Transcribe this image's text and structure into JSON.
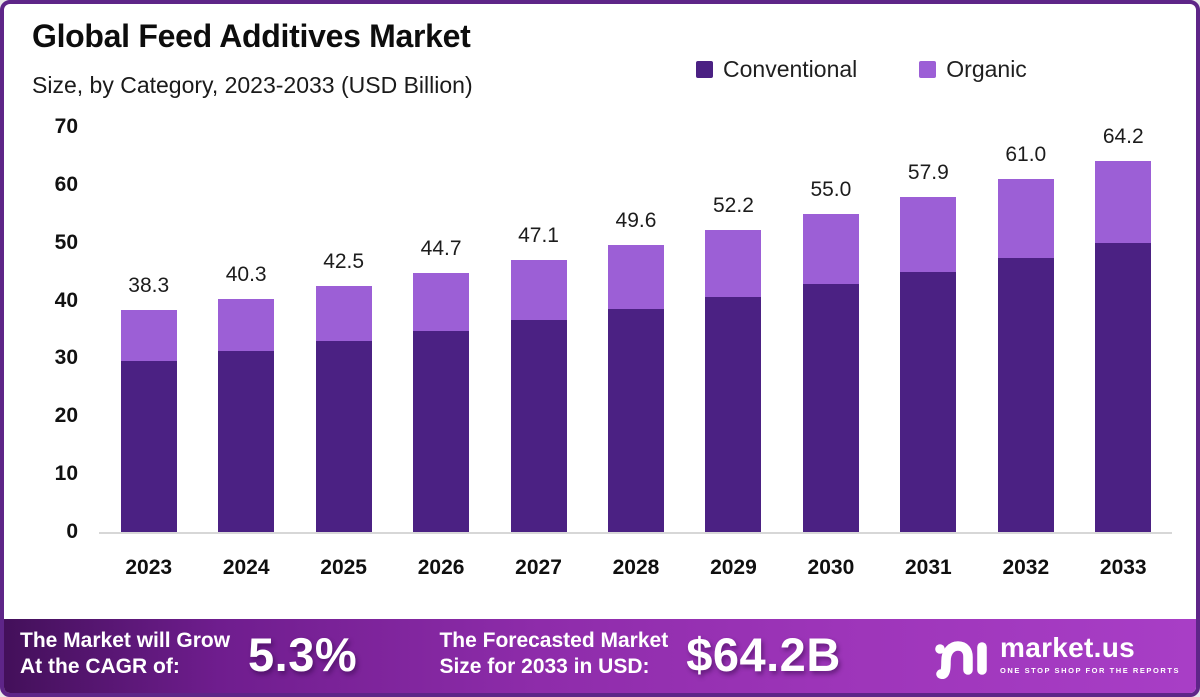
{
  "title": "Global Feed Additives Market",
  "subtitle": "Size, by Category, 2023-2033 (USD Billion)",
  "legend": [
    {
      "label": "Conventional",
      "color": "#4b2183"
    },
    {
      "label": "Organic",
      "color": "#9c5fd6"
    }
  ],
  "chart_data": {
    "type": "bar",
    "stacked": true,
    "title": "Global Feed Additives Market Size, by Category, 2023-2033 (USD Billion)",
    "categories": [
      "2023",
      "2024",
      "2025",
      "2026",
      "2027",
      "2028",
      "2029",
      "2030",
      "2031",
      "2032",
      "2033"
    ],
    "series": [
      {
        "name": "Conventional",
        "color": "#4b2183",
        "values": [
          29.6,
          31.3,
          33.0,
          34.7,
          36.6,
          38.5,
          40.6,
          42.8,
          45.0,
          47.3,
          49.9
        ]
      },
      {
        "name": "Organic",
        "color": "#9c5fd6",
        "values": [
          8.7,
          9.0,
          9.5,
          10.0,
          10.5,
          11.1,
          11.6,
          12.2,
          12.9,
          13.7,
          14.3
        ]
      }
    ],
    "totals": [
      38.3,
      40.3,
      42.5,
      44.7,
      47.1,
      49.6,
      52.2,
      55.0,
      57.9,
      61.0,
      64.2
    ],
    "total_labels": [
      "38.3",
      "40.3",
      "42.5",
      "44.7",
      "47.1",
      "49.6",
      "52.2",
      "55.0",
      "57.9",
      "61.0",
      "64.2"
    ],
    "xlabel": "",
    "ylabel": "",
    "ylim": [
      0,
      70
    ],
    "yticks": [
      0,
      10,
      20,
      30,
      40,
      50,
      60,
      70
    ],
    "grid": false,
    "legend_position": "top-right"
  },
  "banner": {
    "cagr_label_line1": "The Market will Grow",
    "cagr_label_line2": "At the CAGR of:",
    "cagr_value": "5.3%",
    "forecast_label_line1": "The Forecasted Market",
    "forecast_label_line2": "Size for 2033 in USD:",
    "forecast_value": "$64.2B",
    "logo_text": "market.us",
    "logo_tagline": "ONE STOP SHOP FOR THE REPORTS"
  },
  "colors": {
    "conventional": "#4b2183",
    "organic": "#9c5fd6",
    "frame_border": "#5e2588",
    "banner_gradient_left": "#43105a",
    "banner_gradient_mid": "#8e2caa",
    "banner_gradient_right": "#a83ec6",
    "axis_line": "#d7d7d7",
    "text": "#0d0d0d",
    "banner_text": "#ffffff"
  }
}
